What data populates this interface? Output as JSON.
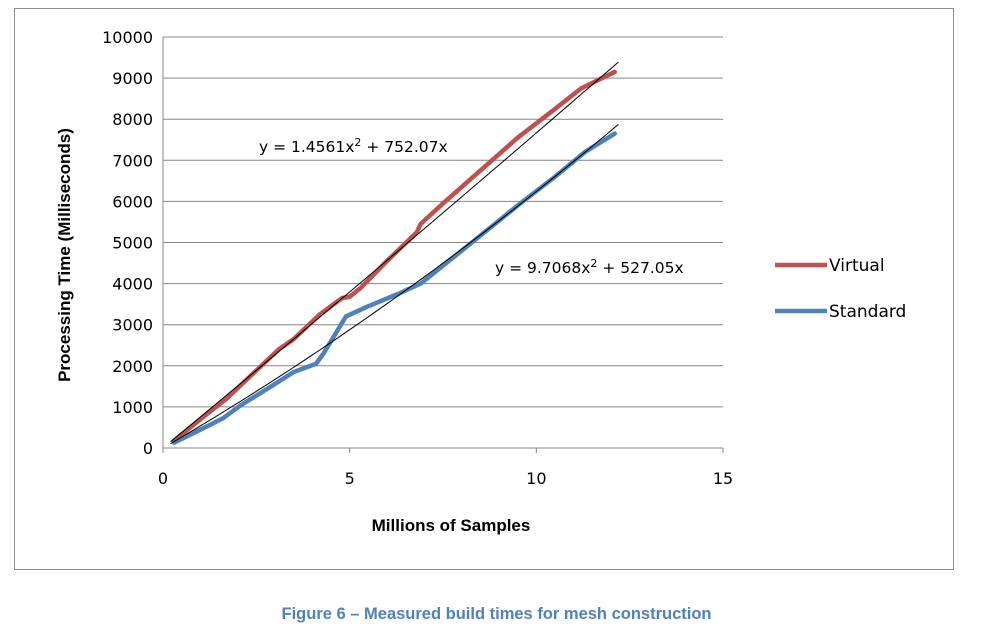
{
  "caption": "Figure 6 – Measured build times for mesh construction",
  "chart_data": {
    "type": "line",
    "xlabel": "Millions of Samples",
    "ylabel": "Processing Time (Milliseconds)",
    "xlim": [
      0,
      15
    ],
    "ylim": [
      0,
      10000
    ],
    "xticks": [
      0,
      5,
      10,
      15
    ],
    "yticks": [
      0,
      1000,
      2000,
      3000,
      4000,
      5000,
      6000,
      7000,
      8000,
      9000,
      10000
    ],
    "grid": "horizontal",
    "legend_position": "right",
    "series": [
      {
        "name": "Virtual",
        "color": "#c0504d",
        "x": [
          0.3,
          1.0,
          1.7,
          2.4,
          3.1,
          3.5,
          4.2,
          4.8,
          5.0,
          5.3,
          6.0,
          6.8,
          6.9,
          7.5,
          8.5,
          9.5,
          10.5,
          11.2,
          12.1
        ],
        "y": [
          180,
          700,
          1200,
          1800,
          2400,
          2650,
          3250,
          3650,
          3680,
          3900,
          4550,
          5250,
          5450,
          5950,
          6750,
          7550,
          8250,
          8750,
          9150
        ]
      },
      {
        "name": "Standard",
        "color": "#4f81bd",
        "x": [
          0.3,
          0.9,
          1.6,
          2.1,
          2.9,
          3.5,
          4.1,
          4.3,
          4.9,
          5.5,
          6.3,
          6.9,
          8.0,
          9.5,
          10.5,
          11.3,
          12.1
        ],
        "y": [
          130,
          400,
          720,
          1050,
          1500,
          1850,
          2050,
          2300,
          3200,
          3450,
          3750,
          4000,
          4800,
          5900,
          6600,
          7200,
          7650
        ]
      }
    ],
    "trendlines": [
      {
        "series": "Virtual",
        "color": "#000000",
        "a": 1.4561,
        "b": 752.07,
        "x_range": [
          0.2,
          12.2
        ],
        "label": "y = 1.4561x² + 752.07x"
      },
      {
        "series": "Standard",
        "color": "#000000",
        "a": 9.7068,
        "b": 527.05,
        "x_range": [
          0.2,
          12.2
        ],
        "label": "y = 9.7068x² + 527.05x"
      }
    ]
  }
}
